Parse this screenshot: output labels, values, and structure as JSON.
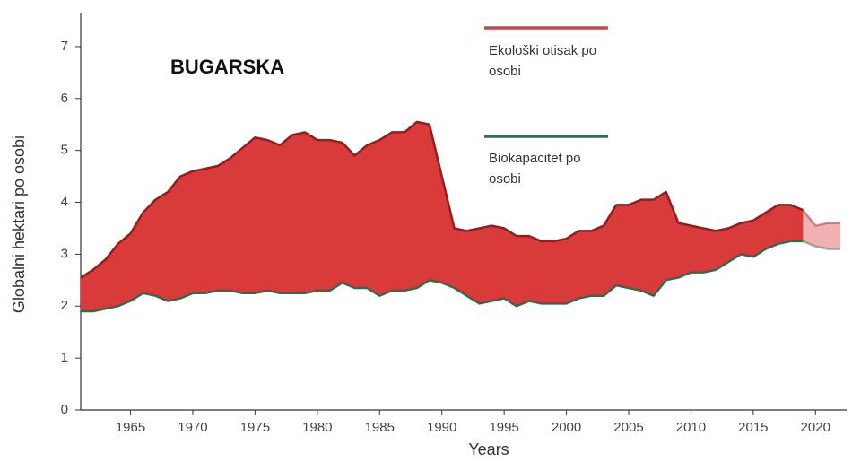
{
  "chart_data": {
    "type": "area-gap",
    "title": "BUGARSKA",
    "y_label": "Globalni hektari po osobi",
    "x_label": "Years",
    "x": [
      1961,
      1962,
      1963,
      1964,
      1965,
      1966,
      1967,
      1968,
      1969,
      1970,
      1971,
      1972,
      1973,
      1974,
      1975,
      1976,
      1977,
      1978,
      1979,
      1980,
      1981,
      1982,
      1983,
      1984,
      1985,
      1986,
      1987,
      1988,
      1989,
      1990,
      1991,
      1992,
      1993,
      1994,
      1995,
      1996,
      1997,
      1998,
      1999,
      2000,
      2001,
      2002,
      2003,
      2004,
      2005,
      2006,
      2007,
      2008,
      2009,
      2010,
      2011,
      2012,
      2013,
      2014,
      2015,
      2016,
      2017,
      2018,
      2019,
      2020,
      2021,
      2022
    ],
    "series": [
      {
        "name": "Ekološki otisak po osobi",
        "color": "#c8494a",
        "line_color": "#a01818",
        "values": [
          2.55,
          2.7,
          2.9,
          3.2,
          3.4,
          3.8,
          4.05,
          4.2,
          4.5,
          4.6,
          4.65,
          4.7,
          4.85,
          5.05,
          5.25,
          5.2,
          5.1,
          5.3,
          5.35,
          5.2,
          5.2,
          5.15,
          4.9,
          5.1,
          5.2,
          5.35,
          5.35,
          5.55,
          5.5,
          4.5,
          3.5,
          3.45,
          3.5,
          3.55,
          3.5,
          3.35,
          3.35,
          3.25,
          3.25,
          3.3,
          3.45,
          3.45,
          3.55,
          3.95,
          3.95,
          4.05,
          4.05,
          4.2,
          3.6,
          3.55,
          3.5,
          3.45,
          3.5,
          3.6,
          3.65,
          3.8,
          3.95,
          3.95,
          3.85,
          null,
          null,
          null
        ],
        "forecast_values": [
          null,
          null,
          null,
          null,
          null,
          null,
          null,
          null,
          null,
          null,
          null,
          null,
          null,
          null,
          null,
          null,
          null,
          null,
          null,
          null,
          null,
          null,
          null,
          null,
          null,
          null,
          null,
          null,
          null,
          null,
          null,
          null,
          null,
          null,
          null,
          null,
          null,
          null,
          null,
          null,
          null,
          null,
          null,
          null,
          null,
          null,
          null,
          null,
          null,
          null,
          null,
          null,
          null,
          null,
          null,
          null,
          null,
          null,
          3.85,
          3.55,
          3.6,
          3.6
        ]
      },
      {
        "name": "Biokapacitet po osobi",
        "color": "#2b6e55",
        "line_color": "#2b6e4f",
        "values": [
          1.9,
          1.9,
          1.95,
          2.0,
          2.1,
          2.25,
          2.2,
          2.1,
          2.15,
          2.25,
          2.25,
          2.3,
          2.3,
          2.25,
          2.25,
          2.3,
          2.25,
          2.25,
          2.25,
          2.3,
          2.3,
          2.45,
          2.35,
          2.35,
          2.2,
          2.3,
          2.3,
          2.35,
          2.5,
          2.45,
          2.35,
          2.2,
          2.05,
          2.1,
          2.15,
          2.0,
          2.1,
          2.05,
          2.05,
          2.05,
          2.15,
          2.2,
          2.2,
          2.4,
          2.35,
          2.3,
          2.2,
          2.5,
          2.55,
          2.65,
          2.65,
          2.7,
          2.85,
          3.0,
          2.95,
          3.1,
          3.2,
          3.25,
          3.25,
          null,
          null,
          null
        ],
        "forecast_values": [
          null,
          null,
          null,
          null,
          null,
          null,
          null,
          null,
          null,
          null,
          null,
          null,
          null,
          null,
          null,
          null,
          null,
          null,
          null,
          null,
          null,
          null,
          null,
          null,
          null,
          null,
          null,
          null,
          null,
          null,
          null,
          null,
          null,
          null,
          null,
          null,
          null,
          null,
          null,
          null,
          null,
          null,
          null,
          null,
          null,
          null,
          null,
          null,
          null,
          null,
          null,
          null,
          null,
          null,
          null,
          null,
          null,
          null,
          3.25,
          3.15,
          3.1,
          3.1
        ]
      }
    ],
    "fill_color": "#d93b3b",
    "xlim": [
      1961,
      2022.5
    ],
    "ylim": [
      0,
      7.5
    ],
    "xticks": [
      1965,
      1970,
      1975,
      1980,
      1985,
      1990,
      1995,
      2000,
      2005,
      2010,
      2015,
      2020
    ],
    "yticks": [
      0,
      1,
      2,
      3,
      4,
      5,
      6,
      7
    ]
  }
}
